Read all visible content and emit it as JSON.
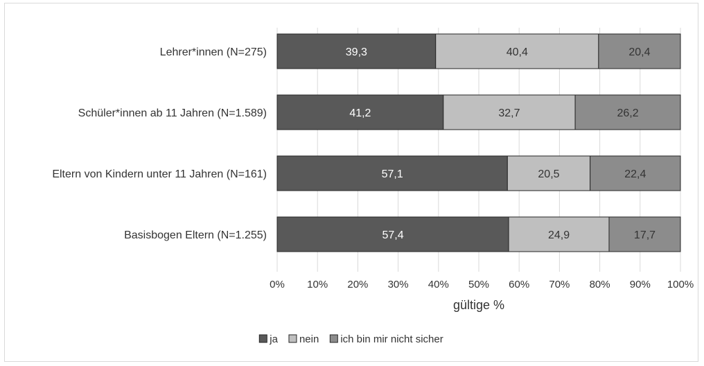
{
  "chart_data": {
    "type": "bar",
    "orientation": "horizontal",
    "stacked": true,
    "categories": [
      "Lehrer*innen (N=275)",
      "Schüler*innen ab 11 Jahren (N=1.589)",
      "Eltern von Kindern unter 11 Jahren (N=161)",
      "Basisbogen Eltern (N=1.255)"
    ],
    "series": [
      {
        "name": "ja",
        "values": [
          39.3,
          41.2,
          57.1,
          57.4
        ],
        "labels": [
          "39,3",
          "41,2",
          "57,1",
          "57,4"
        ],
        "color": "#595959"
      },
      {
        "name": "nein",
        "values": [
          40.4,
          32.7,
          20.5,
          24.9
        ],
        "labels": [
          "40,4",
          "32,7",
          "20,5",
          "24,9"
        ],
        "color": "#bfbfbf"
      },
      {
        "name": "ich bin mir nicht sicher",
        "values": [
          20.4,
          26.2,
          22.4,
          17.7
        ],
        "labels": [
          "20,4",
          "26,2",
          "22,4",
          "17,7"
        ],
        "color": "#8c8c8c"
      }
    ],
    "title": "",
    "xlabel": "gültige %",
    "ylabel": "",
    "xlim": [
      0,
      100
    ],
    "xticks": [
      "0%",
      "10%",
      "20%",
      "30%",
      "40%",
      "50%",
      "60%",
      "70%",
      "80%",
      "90%",
      "100%"
    ],
    "grid": "vertical",
    "legend_position": "bottom"
  }
}
